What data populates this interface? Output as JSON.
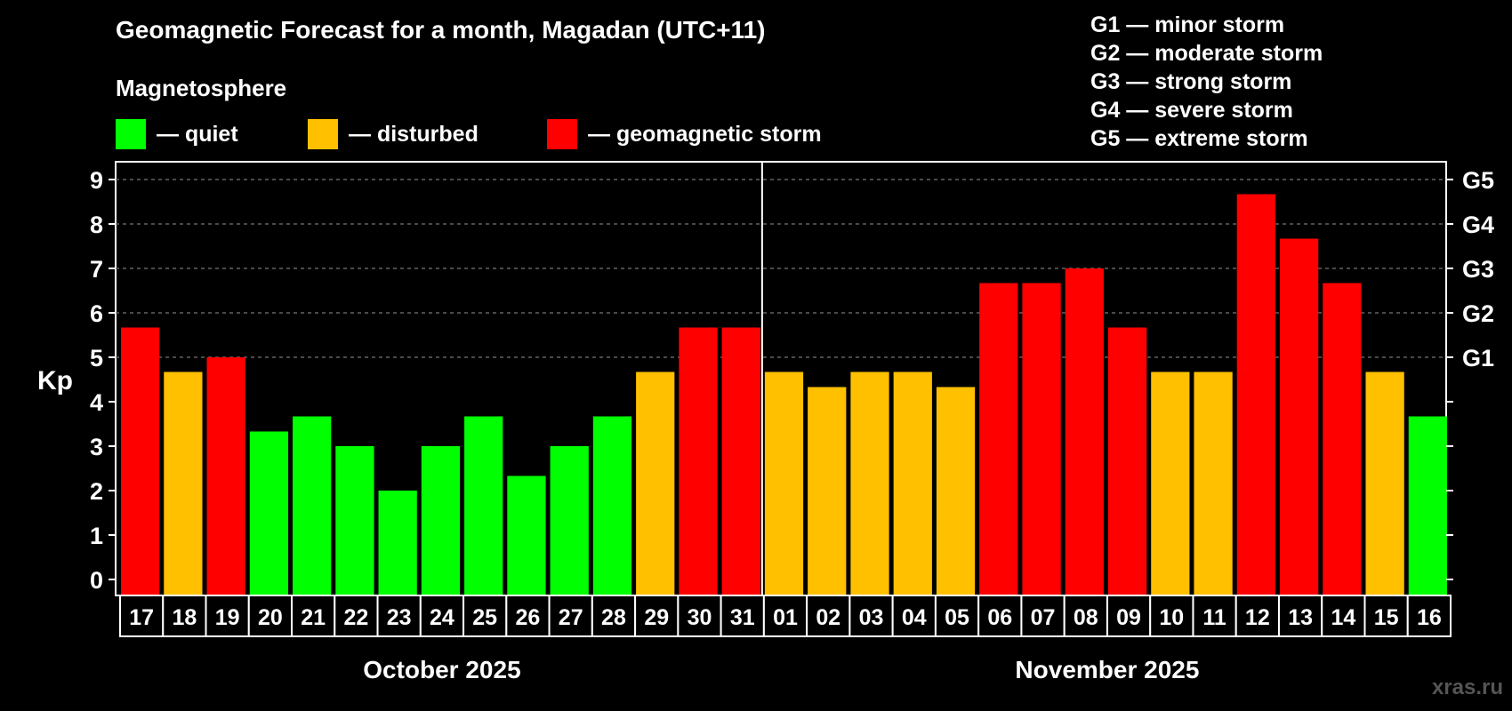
{
  "title": "Geomagnetic Forecast for a month, Magadan (UTC+11)",
  "legend": {
    "heading": "Magnetosphere",
    "items": [
      {
        "label": "— quiet",
        "color": "#00ff00"
      },
      {
        "label": "— disturbed",
        "color": "#ffc000"
      },
      {
        "label": "— geomagnetic storm",
        "color": "#ff0000"
      }
    ]
  },
  "storm_levels": [
    "G1 — minor storm",
    "G2 — moderate storm",
    "G3 — strong storm",
    "G4 — severe storm",
    "G5 — extreme storm"
  ],
  "watermark": "xras.ru",
  "chart_data": {
    "type": "bar",
    "ylabel": "Kp",
    "ylim": [
      0,
      9
    ],
    "yticks": [
      "0",
      "1",
      "2",
      "3",
      "4",
      "5",
      "6",
      "7",
      "8",
      "9"
    ],
    "right_axis_labels": [
      {
        "value": 5,
        "label": "G1"
      },
      {
        "value": 6,
        "label": "G2"
      },
      {
        "value": 7,
        "label": "G3"
      },
      {
        "value": 8,
        "label": "G4"
      },
      {
        "value": 9,
        "label": "G5"
      }
    ],
    "grid": "dashed horizontal at Kp 5–9",
    "months": [
      {
        "name": "October 2025",
        "first": 0,
        "last": 14
      },
      {
        "name": "November 2025",
        "first": 15,
        "last": 30
      }
    ],
    "categories": [
      "17",
      "18",
      "19",
      "20",
      "21",
      "22",
      "23",
      "24",
      "25",
      "26",
      "27",
      "28",
      "29",
      "30",
      "31",
      "01",
      "02",
      "03",
      "04",
      "05",
      "06",
      "07",
      "08",
      "09",
      "10",
      "11",
      "12",
      "13",
      "14",
      "15",
      "16"
    ],
    "values": [
      5.67,
      4.67,
      5.0,
      3.33,
      3.67,
      3.0,
      2.0,
      3.0,
      3.67,
      2.33,
      3.0,
      3.67,
      4.67,
      5.67,
      5.67,
      4.67,
      4.33,
      4.67,
      4.67,
      4.33,
      6.67,
      6.67,
      7.0,
      5.67,
      4.67,
      4.67,
      8.67,
      7.67,
      6.67,
      4.67,
      3.67
    ],
    "colors": {
      "quiet": "#00ff00",
      "disturbed": "#ffc000",
      "storm": "#ff0000"
    }
  }
}
